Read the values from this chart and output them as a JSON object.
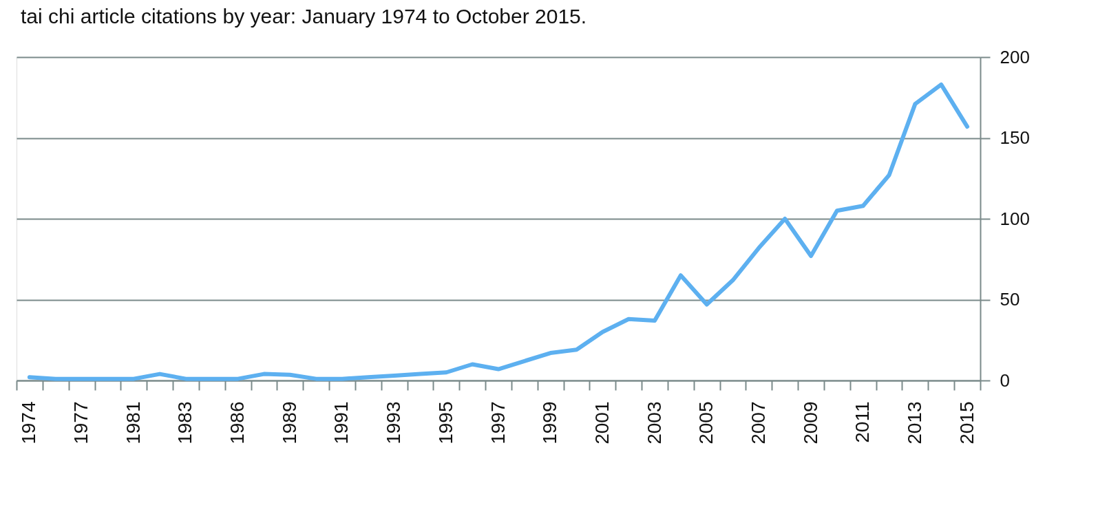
{
  "chart_data": {
    "type": "line",
    "title": "tai chi article citations by year: January 1974 to October 2015.",
    "categories": [
      "1974",
      null,
      "1977",
      null,
      "1981",
      null,
      "1983",
      null,
      "1986",
      null,
      "1989",
      null,
      "1991",
      null,
      "1993",
      null,
      "1995",
      null,
      "1997",
      null,
      "1999",
      null,
      "2001",
      null,
      "2003",
      null,
      "2005",
      null,
      "2007",
      null,
      "2009",
      null,
      "2011",
      null,
      "2013",
      null,
      "2015"
    ],
    "series": [
      {
        "color": "#5db0f0",
        "values": [
          2,
          1,
          1,
          1,
          1,
          4,
          1,
          1,
          1,
          4,
          3.5,
          1,
          1,
          2,
          3,
          4,
          5,
          10,
          7,
          12,
          17,
          19,
          30,
          38,
          37,
          65,
          47,
          62,
          82,
          100,
          77,
          105,
          108,
          127,
          171,
          183,
          157
        ]
      }
    ],
    "ylim": [
      0,
      200
    ],
    "yticks": [
      0,
      50,
      100,
      150,
      200
    ],
    "grid": "y",
    "marker": "none",
    "line_style": "solid"
  }
}
